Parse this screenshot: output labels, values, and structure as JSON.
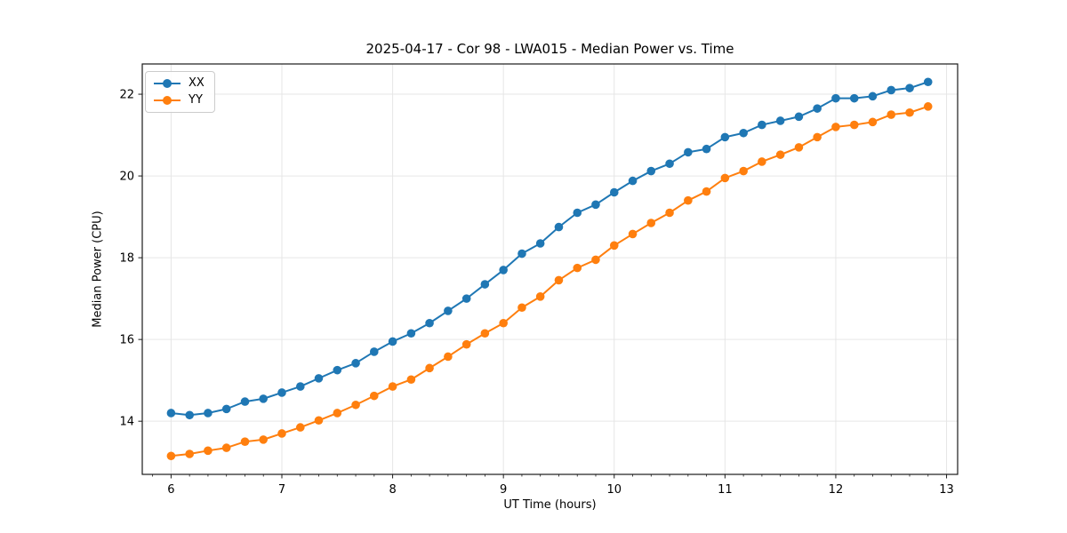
{
  "figure": {
    "title": "2025-04-17 - Cor 98 - LWA015 - Median Power vs. Time",
    "xlabel": "UT Time (hours)",
    "ylabel": "Median Power (CPU)"
  },
  "chart_data": {
    "type": "line",
    "title": "2025-04-17 - Cor 98 - LWA015 - Median Power vs. Time",
    "xlabel": "UT Time (hours)",
    "ylabel": "Median Power (CPU)",
    "grid": true,
    "legend_position": "upper-left",
    "xlim": [
      5.74,
      13.1
    ],
    "ylim": [
      12.7,
      22.74
    ],
    "xticks": [
      6,
      7,
      8,
      9,
      10,
      11,
      12,
      13
    ],
    "yticks": [
      14,
      16,
      18,
      20,
      22
    ],
    "x_minor_step": 0.1666667,
    "x": [
      6.0,
      6.167,
      6.333,
      6.5,
      6.667,
      6.833,
      7.0,
      7.167,
      7.333,
      7.5,
      7.667,
      7.833,
      8.0,
      8.167,
      8.333,
      8.5,
      8.667,
      8.833,
      9.0,
      9.167,
      9.333,
      9.5,
      9.667,
      9.833,
      10.0,
      10.167,
      10.333,
      10.5,
      10.667,
      10.833,
      11.0,
      11.167,
      11.333,
      11.5,
      11.667,
      11.833,
      12.0,
      12.167,
      12.333,
      12.5,
      12.667,
      12.833
    ],
    "series": [
      {
        "name": "XX",
        "color": "#1f77b4",
        "marker": "circle",
        "values": [
          14.2,
          14.15,
          14.2,
          14.3,
          14.48,
          14.55,
          14.7,
          14.85,
          15.05,
          15.25,
          15.42,
          15.7,
          15.95,
          16.15,
          16.4,
          16.7,
          17.0,
          17.35,
          17.7,
          18.1,
          18.35,
          18.75,
          19.1,
          19.3,
          19.6,
          19.88,
          20.12,
          20.3,
          20.58,
          20.66,
          20.95,
          21.05,
          21.25,
          21.35,
          21.45,
          21.65,
          21.9,
          21.9,
          21.95,
          22.1,
          22.15,
          22.3
        ]
      },
      {
        "name": "YY",
        "color": "#ff7f0e",
        "marker": "circle",
        "values": [
          13.15,
          13.2,
          13.28,
          13.35,
          13.5,
          13.55,
          13.7,
          13.85,
          14.02,
          14.2,
          14.4,
          14.62,
          14.85,
          15.02,
          15.3,
          15.58,
          15.88,
          16.15,
          16.4,
          16.78,
          17.05,
          17.45,
          17.75,
          17.95,
          18.3,
          18.58,
          18.85,
          19.1,
          19.4,
          19.62,
          19.95,
          20.12,
          20.35,
          20.52,
          20.7,
          20.95,
          21.2,
          21.25,
          21.32,
          21.5,
          21.55,
          21.7
        ]
      }
    ],
    "style": {
      "grid_color": "#e6e6e6",
      "spine_color": "#1a1a1a",
      "tick_color": "#1a1a1a",
      "background": "#ffffff"
    }
  }
}
